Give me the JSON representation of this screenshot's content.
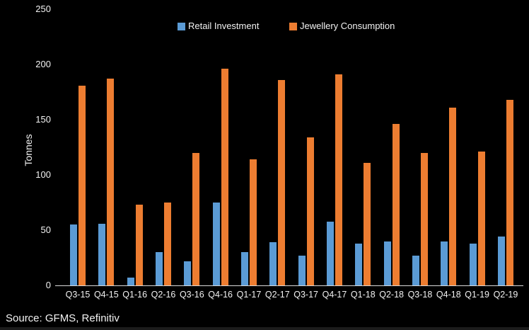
{
  "chart_data": {
    "type": "bar",
    "title": "",
    "xlabel": "",
    "ylabel": "Tonnes",
    "ylim": [
      0,
      250
    ],
    "yticks": [
      0,
      50,
      100,
      150,
      200,
      250
    ],
    "grid": false,
    "legend_position": "top-center",
    "categories": [
      "Q3-15",
      "Q4-15",
      "Q1-16",
      "Q2-16",
      "Q3-16",
      "Q4-16",
      "Q1-17",
      "Q2-17",
      "Q3-17",
      "Q4-17",
      "Q1-18",
      "Q2-18",
      "Q3-18",
      "Q4-18",
      "Q1-19",
      "Q2-19"
    ],
    "series": [
      {
        "name": "Retail Investment",
        "color": "#5B9BD5",
        "values": [
          55,
          56,
          7,
          30,
          22,
          75,
          30,
          39,
          27,
          58,
          38,
          40,
          27,
          40,
          38,
          44
        ]
      },
      {
        "name": "Jewellery Consumption",
        "color": "#ED7D31",
        "values": [
          181,
          187,
          73,
          75,
          120,
          196,
          114,
          186,
          134,
          191,
          111,
          146,
          120,
          161,
          121,
          168
        ]
      }
    ],
    "colors": {
      "background": "#000000",
      "text": "#F2F2F2",
      "axis_line": "#D9D9D9"
    }
  },
  "footer": {
    "source": "Source: GFMS, Refinitiv"
  }
}
